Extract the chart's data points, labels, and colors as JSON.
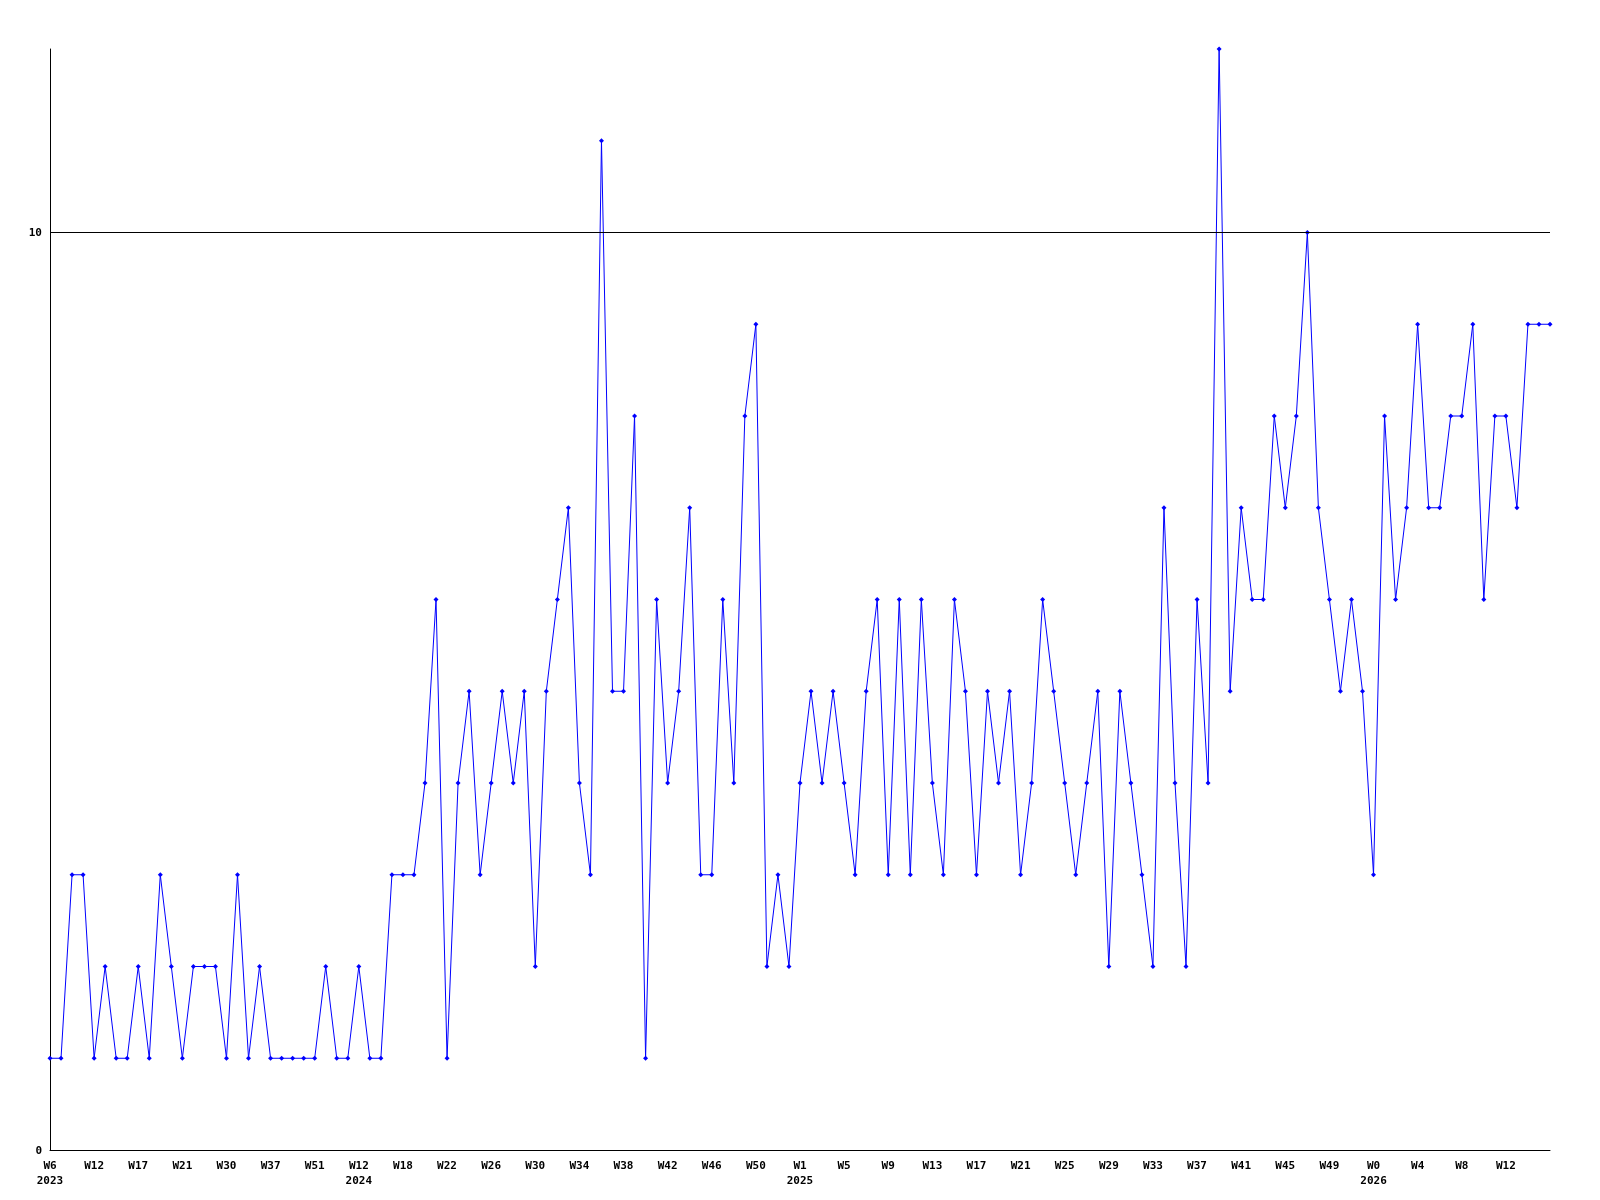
{
  "chart_data": {
    "type": "line",
    "categories": [
      "W6\n2023",
      null,
      null,
      null,
      "W12",
      null,
      null,
      null,
      "W17",
      null,
      null,
      null,
      "W21",
      null,
      null,
      null,
      "W30",
      null,
      null,
      null,
      "W37",
      null,
      null,
      null,
      "W51",
      null,
      null,
      null,
      "W12\n2024",
      null,
      null,
      null,
      "W18",
      null,
      null,
      null,
      "W22",
      null,
      null,
      null,
      "W26",
      null,
      null,
      null,
      "W30",
      null,
      null,
      null,
      "W34",
      null,
      null,
      null,
      "W38",
      null,
      null,
      null,
      "W42",
      null,
      null,
      null,
      "W46",
      null,
      null,
      null,
      "W50",
      null,
      null,
      null,
      "W1\n2025",
      null,
      null,
      null,
      "W5",
      null,
      null,
      null,
      "W9",
      null,
      null,
      null,
      "W13",
      null,
      null,
      null,
      "W17",
      null,
      null,
      null,
      "W21",
      null,
      null,
      null,
      "W25",
      null,
      null,
      null,
      "W29",
      null,
      null,
      null,
      "W33",
      null,
      null,
      null,
      "W37",
      null,
      null,
      null,
      "W41",
      null,
      null,
      null,
      "W45",
      null,
      null,
      null,
      "W49",
      null,
      null,
      null,
      "W0\n2026",
      null,
      null,
      null,
      "W4",
      null,
      null,
      null,
      "W8",
      null,
      null,
      null,
      "W12",
      null,
      null,
      null,
      null
    ],
    "series": [
      {
        "color": "#0000ff",
        "values": [
          1,
          1,
          3,
          3,
          1,
          2,
          1,
          1,
          2,
          1,
          3,
          2,
          1,
          2,
          2,
          2,
          1,
          3,
          1,
          2,
          1,
          1,
          1,
          1,
          1,
          2,
          1,
          1,
          2,
          1,
          1,
          3,
          3,
          3,
          4,
          6,
          1,
          4,
          5,
          3,
          4,
          5,
          4,
          5,
          2,
          5,
          6,
          7,
          4,
          3,
          11,
          5,
          5,
          8,
          1,
          6,
          4,
          5,
          7,
          3,
          3,
          6,
          4,
          8,
          9,
          2,
          3,
          2,
          4,
          5,
          4,
          5,
          4,
          3,
          5,
          6,
          3,
          6,
          3,
          6,
          4,
          3,
          6,
          5,
          3,
          5,
          4,
          5,
          3,
          4,
          6,
          5,
          4,
          3,
          4,
          5,
          2,
          5,
          4,
          3,
          2,
          7,
          4,
          2,
          6,
          4,
          12,
          5,
          7,
          6,
          6,
          8,
          7,
          8,
          10,
          7,
          6,
          5,
          6,
          5,
          3,
          8,
          6,
          7,
          9,
          7,
          7,
          8,
          8,
          9,
          6,
          8,
          8,
          7,
          9,
          9,
          9
        ]
      }
    ],
    "ylim": [
      0,
      12
    ],
    "yticks": [
      0,
      10
    ],
    "grid": "y",
    "marker": "diamond",
    "line_style": "solid"
  }
}
